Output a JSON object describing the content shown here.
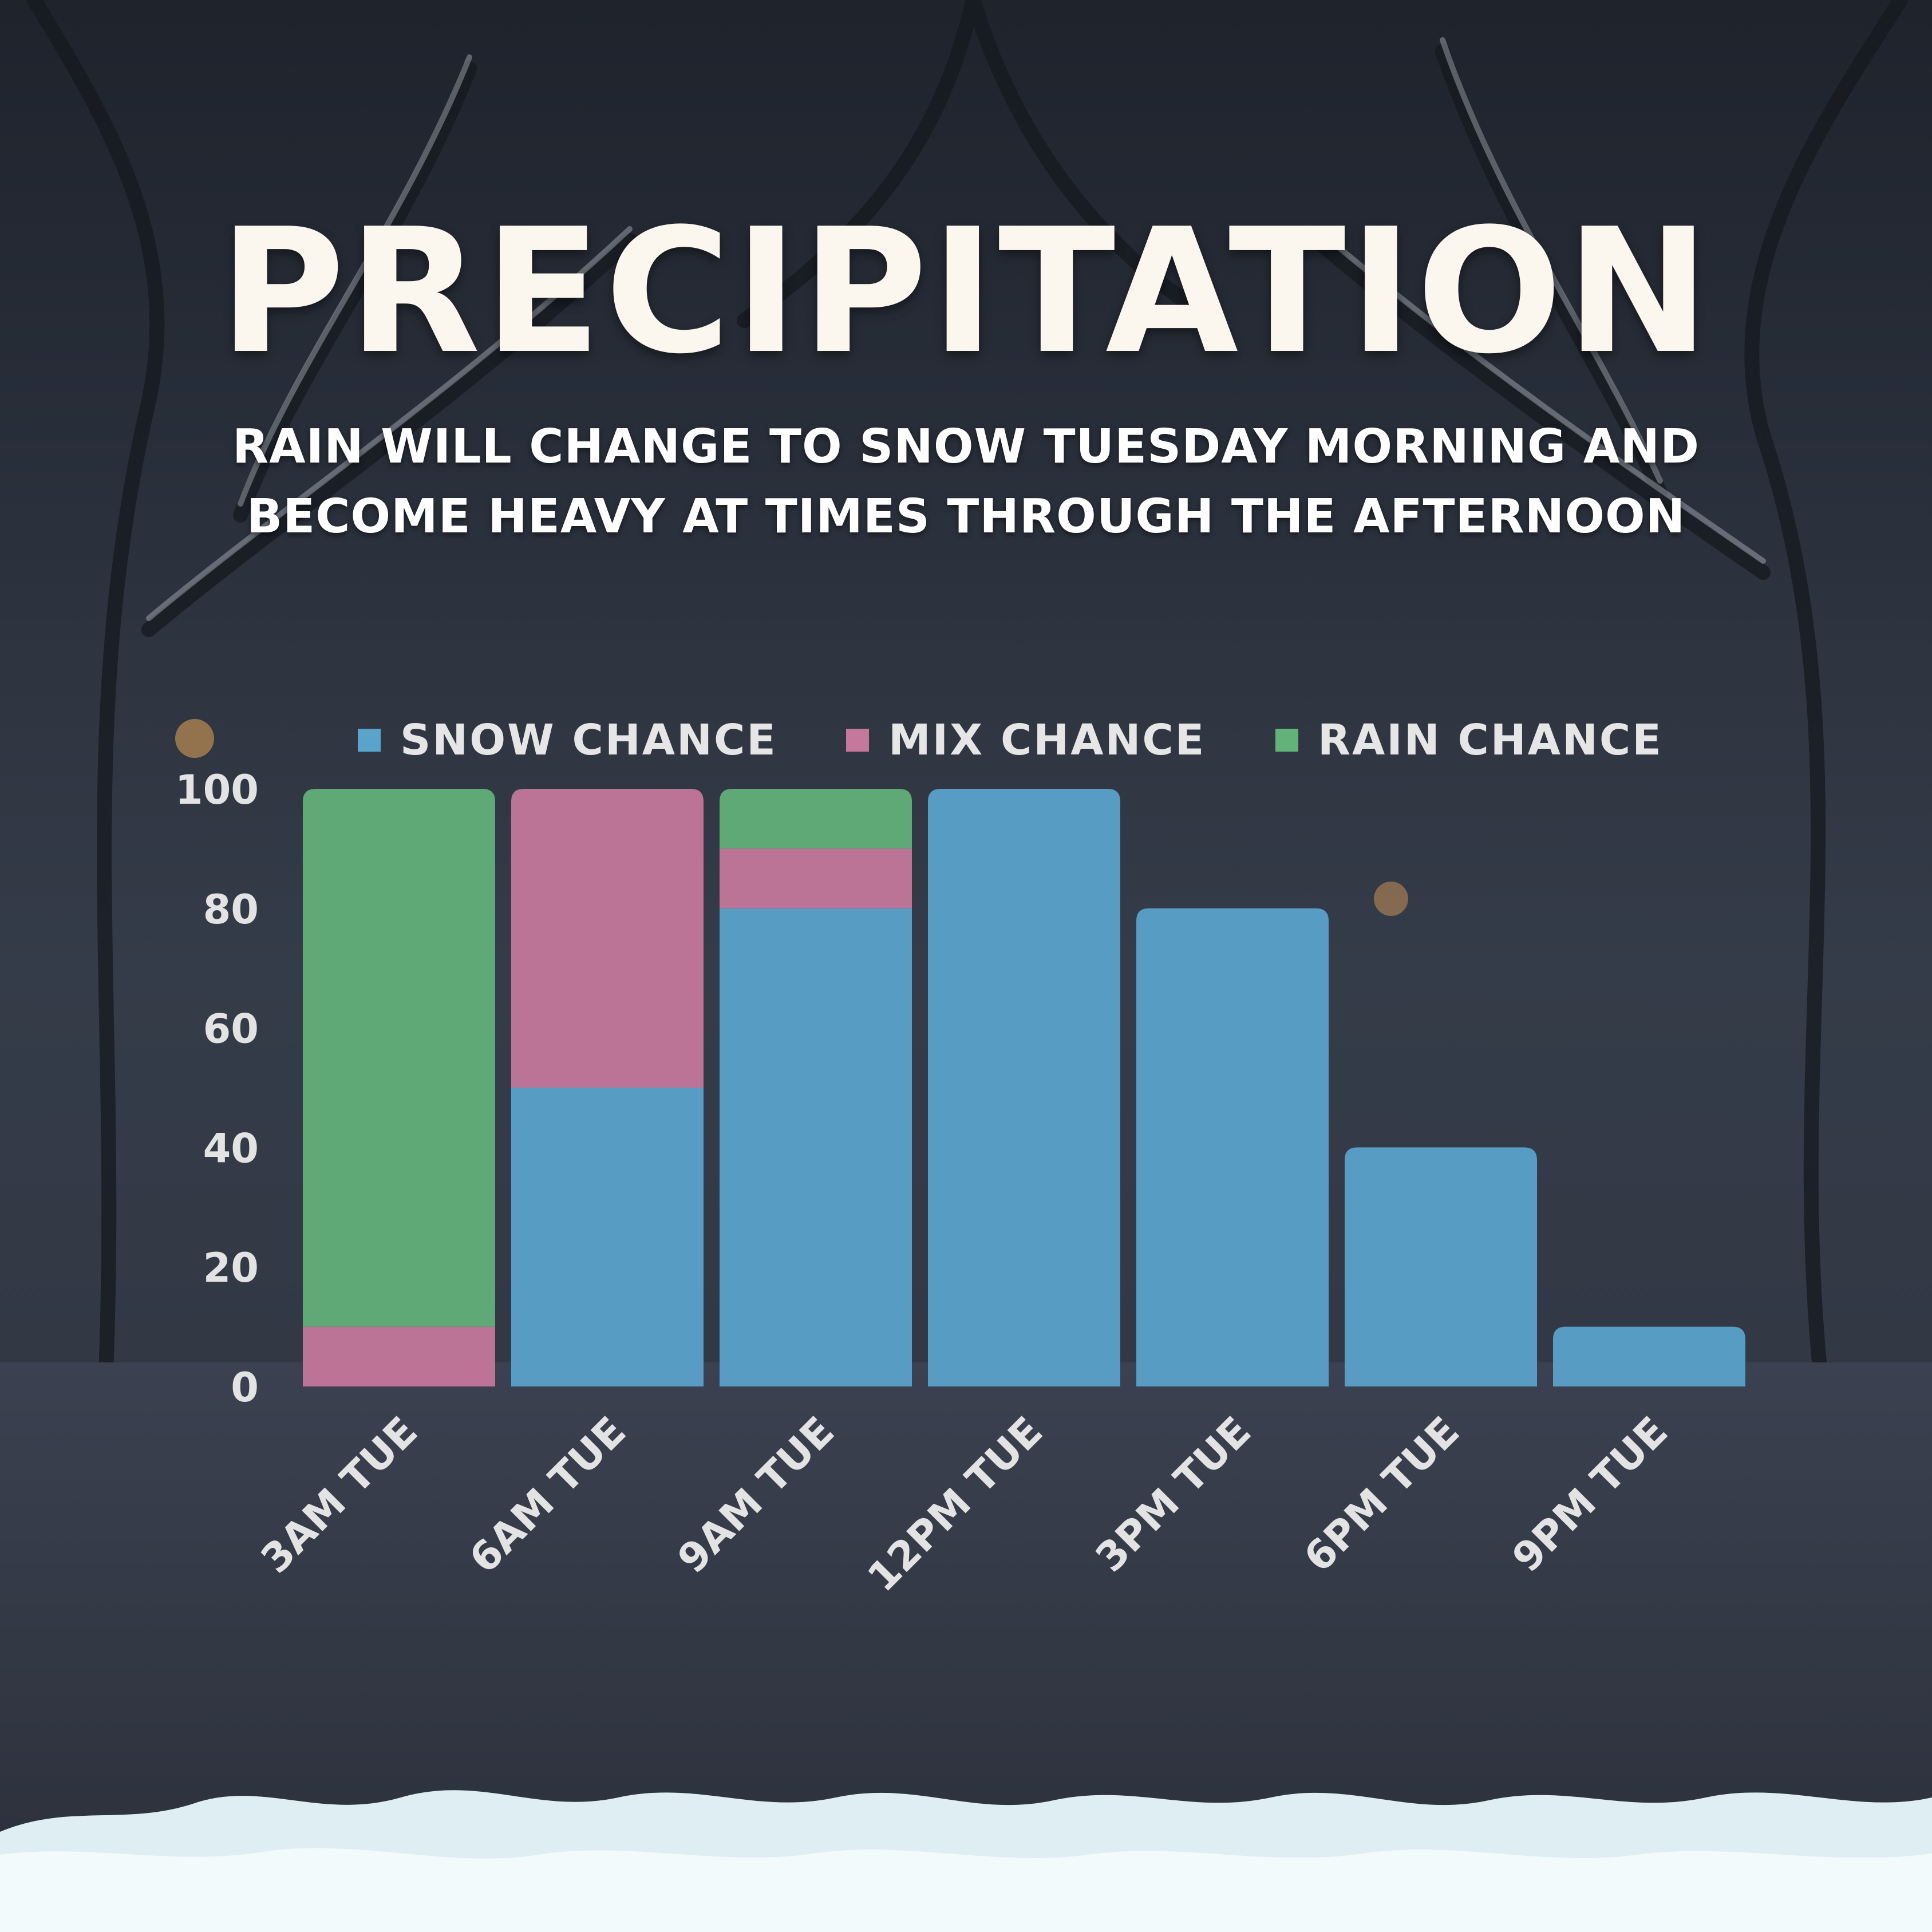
{
  "title": "PRECIPITATION",
  "subtitle_lines": [
    "RAIN WILL CHANGE TO SNOW TUESDAY MORNING AND",
    "BECOME HEAVY AT TIMES THROUGH THE AFTERNOON"
  ],
  "legend": [
    {
      "label": "SNOW CHANCE",
      "color": "#5aa4cc"
    },
    {
      "label": "MIX CHANCE",
      "color": "#c6779c"
    },
    {
      "label": "RAIN CHANCE",
      "color": "#62b27a"
    }
  ],
  "chart_data": {
    "type": "bar",
    "stacked": true,
    "categories": [
      "3AM TUE",
      "6AM TUE",
      "9AM TUE",
      "12PM TUE",
      "3PM TUE",
      "6PM TUE",
      "9PM TUE"
    ],
    "series": [
      {
        "name": "SNOW CHANCE",
        "color": "#5aa4cc",
        "values": [
          0,
          50,
          80,
          100,
          80,
          40,
          10
        ]
      },
      {
        "name": "MIX CHANCE",
        "color": "#c6779c",
        "values": [
          10,
          50,
          10,
          0,
          0,
          0,
          0
        ]
      },
      {
        "name": "RAIN CHANCE",
        "color": "#62b27a",
        "values": [
          90,
          0,
          10,
          0,
          0,
          0,
          0
        ]
      }
    ],
    "y_ticks": [
      0,
      20,
      40,
      60,
      80,
      100
    ],
    "ylim": [
      0,
      100
    ],
    "legend_position": "top",
    "grid": false,
    "xlabel": "",
    "ylabel": ""
  }
}
